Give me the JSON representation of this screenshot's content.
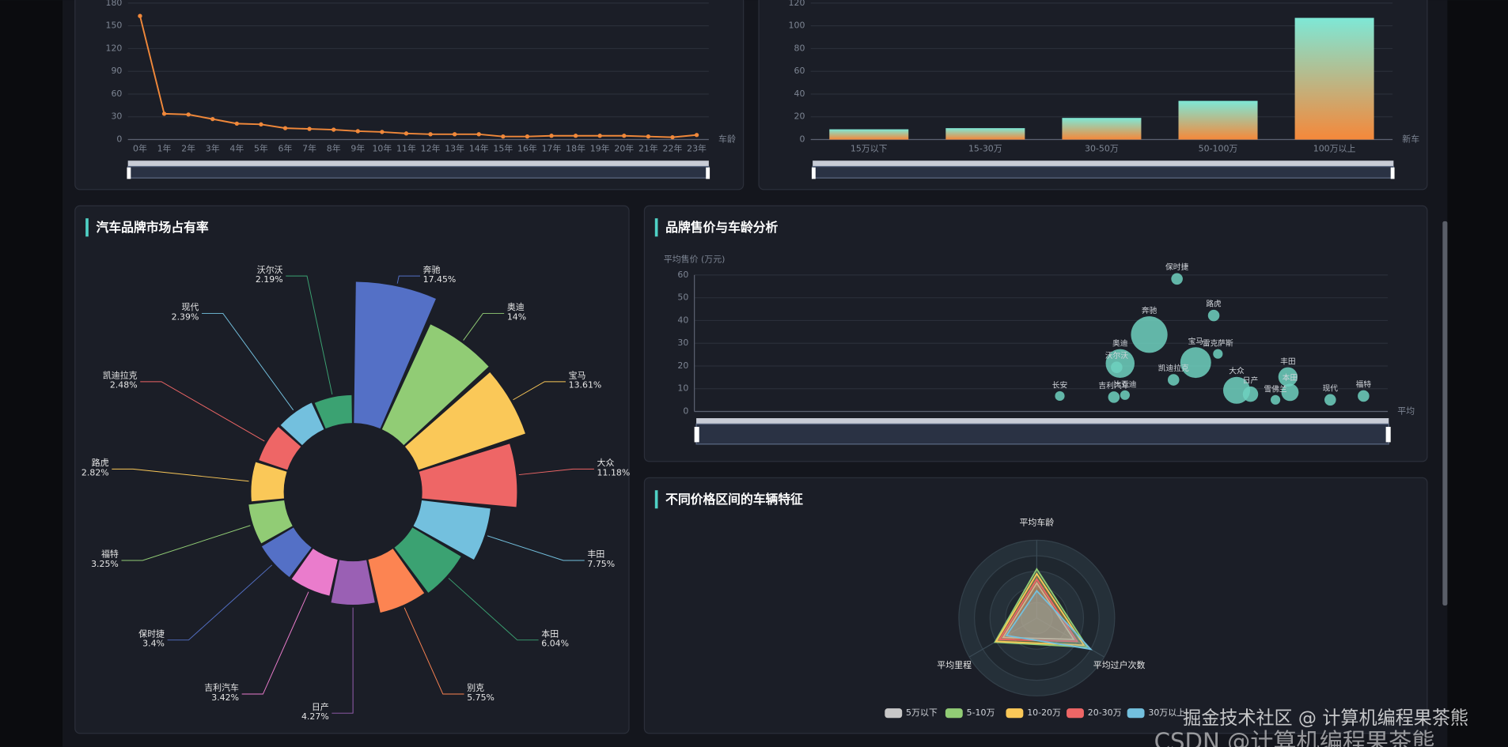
{
  "chart_data": [
    {
      "type": "line",
      "categories": [
        "0年",
        "1年",
        "2年",
        "3年",
        "4年",
        "5年",
        "6年",
        "7年",
        "8年",
        "9年",
        "10年",
        "11年",
        "12年",
        "13年",
        "14年",
        "15年",
        "16年",
        "17年",
        "18年",
        "19年",
        "20年",
        "21年",
        "22年",
        "23年"
      ],
      "values": [
        163,
        34,
        33,
        27,
        21,
        20,
        15,
        14,
        13,
        11,
        10,
        8,
        7,
        7,
        7,
        4,
        4,
        5,
        5,
        5,
        5,
        4,
        3,
        6
      ],
      "color": "#f0883a",
      "ylim": [
        0,
        180
      ],
      "yticks": [
        0,
        30,
        60,
        90,
        120,
        150,
        180
      ],
      "xlabel": "车龄",
      "grid": true
    },
    {
      "type": "bar",
      "categories": [
        "15万以下",
        "15-30万",
        "30-50万",
        "50-100万",
        "100万以上"
      ],
      "values": [
        9,
        10,
        19,
        34,
        107
      ],
      "gradient": [
        "#7ee8d6",
        "#f5883a"
      ],
      "ylim": [
        0,
        120
      ],
      "yticks": [
        0,
        20,
        40,
        60,
        80,
        100,
        120
      ],
      "xlabel": "新车",
      "grid": true
    },
    {
      "type": "pie",
      "title": "汽车品牌市场占有率",
      "categories": [
        "奔驰",
        "奥迪",
        "宝马",
        "大众",
        "丰田",
        "本田",
        "别克",
        "日产",
        "吉利汽车",
        "保时捷",
        "福特",
        "路虎",
        "凯迪拉克",
        "现代",
        "沃尔沃"
      ],
      "values": [
        17.45,
        14,
        13.61,
        11.18,
        7.75,
        6.04,
        5.75,
        4.27,
        3.42,
        3.4,
        3.25,
        2.82,
        2.48,
        2.39,
        2.19
      ],
      "value_labels": [
        "17.45%",
        "14%",
        "13.61%",
        "11.18%",
        "7.75%",
        "6.04%",
        "5.75%",
        "4.27%",
        "3.42%",
        "3.4%",
        "3.25%",
        "2.82%",
        "2.48%",
        "2.39%",
        "2.19%"
      ],
      "colors": [
        "#5470c6",
        "#91cc75",
        "#fac858",
        "#ee6666",
        "#73c0de",
        "#3ba272",
        "#fc8452",
        "#9a60b4",
        "#ea7ccc",
        "#5470c6",
        "#91cc75",
        "#fac858",
        "#ee6666",
        "#73c0de",
        "#3ba272"
      ]
    },
    {
      "type": "scatter",
      "title": "品牌售价与车龄分析",
      "ylabel": "平均售价 (万元)",
      "xlabel": "平均",
      "names": [
        "保时捷",
        "路虎",
        "奔驰",
        "宝马",
        "雷克萨斯",
        "奥迪",
        "沃尔沃",
        "长安",
        "吉利汽车",
        "比亚迪",
        "凯迪拉克",
        "大众",
        "日产",
        "丰田",
        "本田",
        "雪佛兰",
        "现代",
        "福特"
      ],
      "x": [
        6.96,
        7.49,
        6.56,
        7.23,
        7.55,
        6.14,
        6.09,
        5.27,
        6.05,
        6.21,
        6.91,
        7.82,
        8.02,
        8.56,
        8.59,
        8.38,
        9.17,
        9.65
      ],
      "values": [
        58.3,
        42.2,
        33.8,
        21.5,
        25.3,
        21.1,
        19.4,
        6.8,
        6.3,
        7.2,
        13.9,
        9.3,
        7.6,
        15.2,
        8.4,
        5.1,
        5.1,
        6.8
      ],
      "sizes": [
        6,
        6,
        19,
        16,
        5,
        15,
        6,
        5,
        6,
        5,
        6,
        14,
        8,
        10,
        9,
        5,
        6,
        6
      ],
      "color": "#6fd1c0",
      "xlim": [
        0,
        10
      ],
      "ylim": [
        0,
        60
      ],
      "yticks": [
        0,
        10,
        20,
        30,
        40,
        50,
        60
      ]
    },
    {
      "type": "radar",
      "title": "不同价格区间的车辆特征",
      "indicators": [
        "平均车龄",
        "平均过户次数",
        "平均里程"
      ],
      "rlim": [
        0,
        1
      ],
      "series": [
        {
          "name": "5万以下",
          "color": "#c8c8c8",
          "values": [
            0.45,
            0.55,
            0.5
          ]
        },
        {
          "name": "5-10万",
          "color": "#91cc75",
          "values": [
            0.63,
            0.75,
            0.62
          ]
        },
        {
          "name": "10-20万",
          "color": "#fac858",
          "values": [
            0.57,
            0.7,
            0.6
          ]
        },
        {
          "name": "20-30万",
          "color": "#ee6666",
          "values": [
            0.5,
            0.6,
            0.55
          ]
        },
        {
          "name": "30万以上",
          "color": "#73c0de",
          "values": [
            0.35,
            0.8,
            0.45
          ]
        }
      ]
    }
  ],
  "watermarks": [
    "掘金技术社区 @ 计算机编程果茶熊",
    "CSDN @计算机编程果茶熊"
  ]
}
